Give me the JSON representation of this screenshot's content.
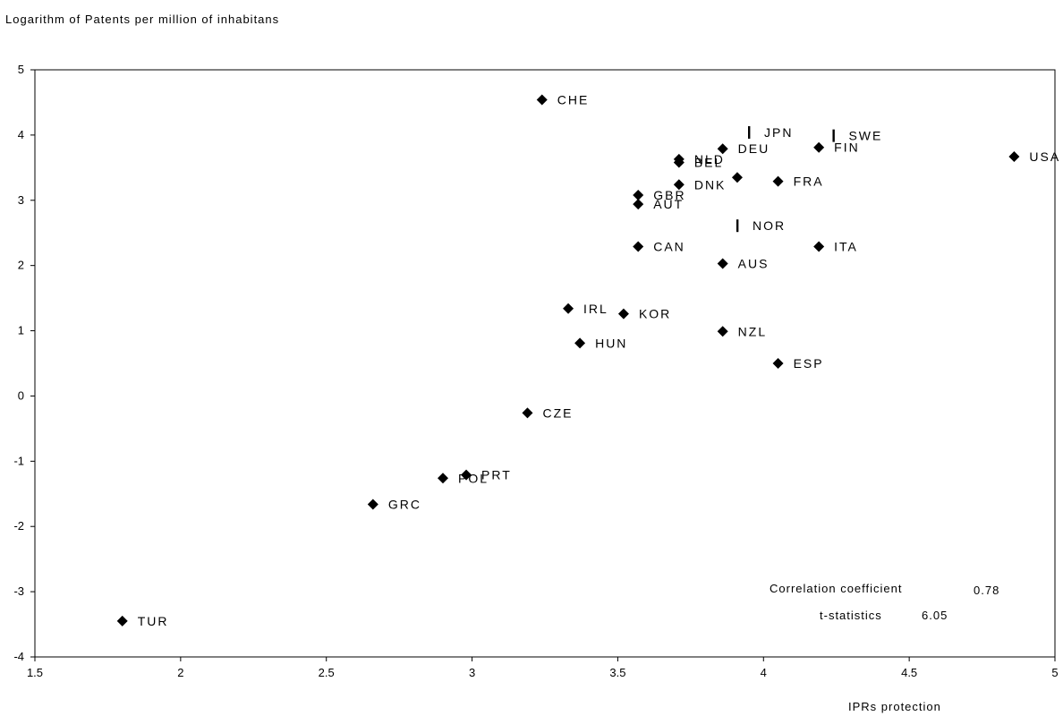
{
  "chart_data": {
    "type": "scatter",
    "ylabel": "Logarithm of Patents per million of inhabitans",
    "xlabel": "IPRs protection",
    "xlim": [
      1.5,
      5
    ],
    "ylim": [
      -4,
      5
    ],
    "x_ticks": [
      "1.5",
      "2",
      "2.5",
      "3",
      "3.5",
      "4",
      "4.5",
      "5"
    ],
    "y_ticks": [
      "5",
      "4",
      "3",
      "2",
      "1",
      "0",
      "-1",
      "-2",
      "-3",
      "-4"
    ],
    "points": [
      {
        "label": "TUR",
        "x": 1.8,
        "y": -3.45,
        "marker": "diamond"
      },
      {
        "label": "GRC",
        "x": 2.66,
        "y": -1.66,
        "marker": "diamond"
      },
      {
        "label": "POL",
        "x": 2.9,
        "y": -1.26,
        "marker": "diamond"
      },
      {
        "label": "PRT",
        "x": 2.98,
        "y": -1.21,
        "marker": "diamond"
      },
      {
        "label": "CZE",
        "x": 3.19,
        "y": -0.26,
        "marker": "diamond"
      },
      {
        "label": "CHE",
        "x": 3.24,
        "y": 4.54,
        "marker": "diamond"
      },
      {
        "label": "IRL",
        "x": 3.33,
        "y": 1.34,
        "marker": "diamond"
      },
      {
        "label": "HUN",
        "x": 3.37,
        "y": 0.81,
        "marker": "diamond"
      },
      {
        "label": "KOR",
        "x": 3.52,
        "y": 1.26,
        "marker": "diamond"
      },
      {
        "label": "GBR",
        "x": 3.57,
        "y": 3.08,
        "marker": "diamond"
      },
      {
        "label": "AUT",
        "x": 3.57,
        "y": 2.94,
        "marker": "diamond"
      },
      {
        "label": "CAN",
        "x": 3.57,
        "y": 2.29,
        "marker": "diamond"
      },
      {
        "label": "NLD",
        "x": 3.71,
        "y": 3.63,
        "marker": "diamond"
      },
      {
        "label": "BEL",
        "x": 3.71,
        "y": 3.58,
        "marker": "diamond"
      },
      {
        "label": "DNK",
        "x": 3.71,
        "y": 3.24,
        "marker": "diamond"
      },
      {
        "label": "DEU",
        "x": 3.86,
        "y": 3.79,
        "marker": "diamond"
      },
      {
        "label": "AUS",
        "x": 3.86,
        "y": 2.03,
        "marker": "diamond"
      },
      {
        "label": "NZL",
        "x": 3.86,
        "y": 0.99,
        "marker": "diamond"
      },
      {
        "label": "NOR",
        "x": 3.91,
        "y": 2.61,
        "marker": "bar"
      },
      {
        "label": "",
        "x": 3.91,
        "y": 3.35,
        "marker": "diamond"
      },
      {
        "label": "JPN",
        "x": 3.95,
        "y": 4.04,
        "marker": "bar"
      },
      {
        "label": "FRA",
        "x": 4.05,
        "y": 3.29,
        "marker": "diamond"
      },
      {
        "label": "ESP",
        "x": 4.05,
        "y": 0.5,
        "marker": "diamond"
      },
      {
        "label": "FIN",
        "x": 4.19,
        "y": 3.81,
        "marker": "diamond"
      },
      {
        "label": "ITA",
        "x": 4.19,
        "y": 2.29,
        "marker": "diamond"
      },
      {
        "label": "SWE",
        "x": 4.24,
        "y": 3.99,
        "marker": "bar"
      },
      {
        "label": "USA",
        "x": 4.86,
        "y": 3.67,
        "marker": "diamond"
      }
    ],
    "annotations": {
      "correlation_label": "Correlation coefficient",
      "correlation_value": "0.78",
      "tstat_label": "t-statistics",
      "tstat_value": "6.05"
    }
  }
}
